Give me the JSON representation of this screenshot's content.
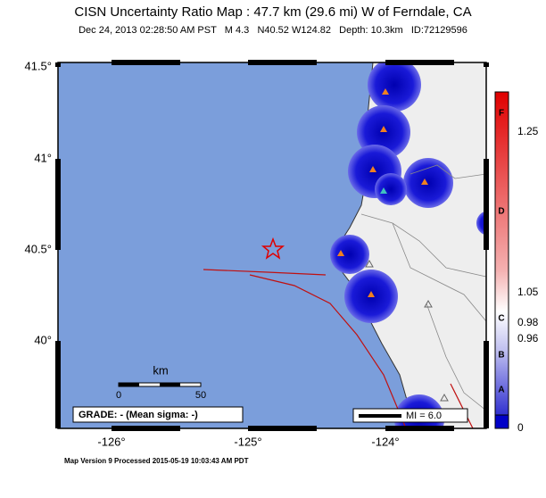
{
  "header": {
    "title": "CISN Uncertainty Ratio Map : 47.7 km (29.6 mi) W of Ferndale, CA",
    "subtitle": "Dec 24, 2013 02:28:50 AM PST   M 4.3   N40.52 W124.82   Depth: 10.3km   ID:72129596"
  },
  "map": {
    "lat_labels": [
      "41.5°",
      "41°",
      "40.5°",
      "40°"
    ],
    "lon_labels": [
      "-126°",
      "-125°",
      "-124°"
    ],
    "scale": {
      "title": "km",
      "labels": [
        "0",
        "50"
      ]
    },
    "grade": "GRADE: - (Mean sigma: -)",
    "mi_legend": "MI = 6.0"
  },
  "colorbar": {
    "letters": [
      "F",
      "D",
      "C",
      "B",
      "A"
    ],
    "values": [
      "1.25",
      "1.05",
      "0.98",
      "0.96",
      "0"
    ]
  },
  "footer": "Map Version 9 Processed 2015-05-19 10:03:43 AM PDT"
}
